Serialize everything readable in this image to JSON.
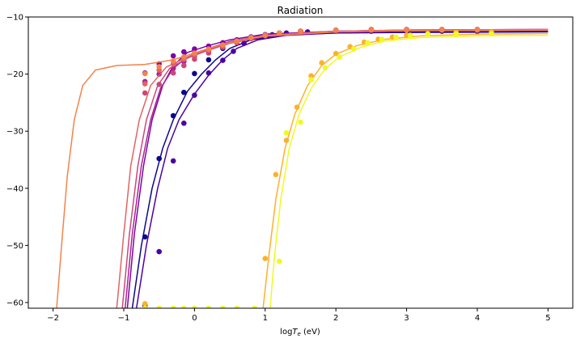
{
  "chart_data": {
    "type": "line",
    "title": "Radiation",
    "xlabel_main": "log",
    "xlabel_sub": "e",
    "xlabel_var": "T",
    "xlabel_unit": " (eV)",
    "xlim": [
      -2.35,
      5.35
    ],
    "ylim": [
      -61,
      -10
    ],
    "xticks": [
      -2,
      -1,
      0,
      1,
      2,
      3,
      4,
      5
    ],
    "yticks": [
      -60,
      -50,
      -40,
      -30,
      -20,
      -10
    ],
    "grid": false,
    "legend": "none",
    "series": [
      {
        "color": "#0d0887",
        "curve": [
          [
            -0.88,
            -61
          ],
          [
            -0.75,
            -50
          ],
          [
            -0.6,
            -40
          ],
          [
            -0.45,
            -33
          ],
          [
            -0.3,
            -28
          ],
          [
            -0.1,
            -23
          ],
          [
            0.1,
            -20
          ],
          [
            0.3,
            -17.5
          ],
          [
            0.5,
            -15.5
          ],
          [
            0.8,
            -14
          ],
          [
            1.2,
            -13.2
          ],
          [
            2,
            -12.8
          ],
          [
            3,
            -12.7
          ],
          [
            5,
            -12.6
          ]
        ],
        "points": [
          [
            -0.7,
            -61
          ],
          [
            -0.7,
            -48.5
          ],
          [
            -0.5,
            -34.8
          ],
          [
            -0.3,
            -27.3
          ],
          [
            -0.15,
            -23.2
          ],
          [
            0.0,
            -19.9
          ],
          [
            0.2,
            -17.5
          ],
          [
            0.4,
            -15.5
          ],
          [
            0.6,
            -14.3
          ],
          [
            0.8,
            -13.5
          ],
          [
            1.0,
            -13.1
          ],
          [
            1.2,
            -12.9
          ],
          [
            1.5,
            -12.6
          ],
          [
            2,
            -12.5
          ],
          [
            2.5,
            -12.5
          ],
          [
            3,
            -12.5
          ],
          [
            3.5,
            -12.5
          ],
          [
            4,
            -12.5
          ]
        ]
      },
      {
        "color": "#4c02a1",
        "curve": [
          [
            -0.82,
            -61
          ],
          [
            -0.68,
            -50
          ],
          [
            -0.52,
            -40
          ],
          [
            -0.38,
            -33
          ],
          [
            -0.22,
            -28
          ],
          [
            0,
            -23.5
          ],
          [
            0.2,
            -20.2
          ],
          [
            0.4,
            -17.5
          ],
          [
            0.6,
            -15.5
          ],
          [
            0.9,
            -14
          ],
          [
            1.3,
            -13.2
          ],
          [
            2,
            -12.8
          ],
          [
            3,
            -12.6
          ],
          [
            5,
            -12.5
          ]
        ],
        "points": [
          [
            -0.7,
            -60.5
          ],
          [
            -0.5,
            -51.1
          ],
          [
            -0.3,
            -35.2
          ],
          [
            -0.15,
            -28.6
          ],
          [
            0.0,
            -23.7
          ],
          [
            0.2,
            -19.8
          ],
          [
            0.4,
            -17.6
          ],
          [
            0.55,
            -16.0
          ],
          [
            0.7,
            -14.6
          ],
          [
            0.9,
            -13.6
          ],
          [
            1.1,
            -13.1
          ],
          [
            1.3,
            -12.8
          ],
          [
            1.6,
            -12.6
          ],
          [
            2,
            -12.4
          ],
          [
            2.5,
            -12.4
          ],
          [
            3,
            -12.4
          ],
          [
            3.5,
            -12.4
          ],
          [
            4,
            -12.4
          ]
        ]
      },
      {
        "color": "#7e03a8",
        "curve": [
          [
            -0.95,
            -61
          ],
          [
            -0.85,
            -48
          ],
          [
            -0.72,
            -36
          ],
          [
            -0.6,
            -28
          ],
          [
            -0.45,
            -22
          ],
          [
            -0.3,
            -18.5
          ],
          [
            -0.1,
            -16.2
          ],
          [
            0.2,
            -15
          ],
          [
            0.5,
            -14
          ],
          [
            1,
            -13
          ],
          [
            2,
            -12.5
          ],
          [
            3,
            -12.3
          ],
          [
            5,
            -12.2
          ]
        ],
        "points": [
          [
            -0.7,
            -19.8
          ],
          [
            -0.5,
            -18.2
          ],
          [
            -0.3,
            -16.8
          ],
          [
            -0.15,
            -16.1
          ],
          [
            0.0,
            -15.6
          ],
          [
            0.2,
            -15.1
          ],
          [
            0.4,
            -14.5
          ],
          [
            0.6,
            -14.0
          ],
          [
            0.8,
            -13.5
          ],
          [
            1.0,
            -13.1
          ],
          [
            1.2,
            -12.8
          ],
          [
            1.5,
            -12.5
          ],
          [
            2,
            -12.3
          ],
          [
            2.5,
            -12.2
          ],
          [
            3,
            -12.2
          ],
          [
            3.5,
            -12.2
          ],
          [
            4,
            -12.2
          ]
        ]
      },
      {
        "color": "#a92395",
        "curve": [
          [
            -0.98,
            -61
          ],
          [
            -0.88,
            -48
          ],
          [
            -0.75,
            -36
          ],
          [
            -0.62,
            -28
          ],
          [
            -0.48,
            -22.5
          ],
          [
            -0.3,
            -19
          ],
          [
            -0.1,
            -17
          ],
          [
            0.2,
            -15.5
          ],
          [
            0.5,
            -14.3
          ],
          [
            1,
            -13.2
          ],
          [
            2,
            -12.5
          ],
          [
            3,
            -12.3
          ],
          [
            5,
            -12.2
          ]
        ],
        "points": [
          [
            -0.7,
            -21.3
          ],
          [
            -0.5,
            -20.0
          ],
          [
            -0.3,
            -19.0
          ],
          [
            -0.15,
            -17.8
          ],
          [
            0.0,
            -16.8
          ],
          [
            0.2,
            -15.9
          ],
          [
            0.4,
            -15.0
          ],
          [
            0.6,
            -14.3
          ],
          [
            0.8,
            -13.7
          ],
          [
            1.0,
            -13.2
          ],
          [
            1.2,
            -12.8
          ],
          [
            1.5,
            -12.5
          ],
          [
            2,
            -12.3
          ],
          [
            2.5,
            -12.2
          ],
          [
            3,
            -12.2
          ],
          [
            3.5,
            -12.2
          ],
          [
            4,
            -12.2
          ]
        ]
      },
      {
        "color": "#cc4778",
        "curve": [
          [
            -1.02,
            -61
          ],
          [
            -0.92,
            -48
          ],
          [
            -0.8,
            -36
          ],
          [
            -0.68,
            -28
          ],
          [
            -0.52,
            -22
          ],
          [
            -0.35,
            -19
          ],
          [
            -0.1,
            -17.2
          ],
          [
            0.2,
            -15.8
          ],
          [
            0.5,
            -14.6
          ],
          [
            1,
            -13.4
          ],
          [
            2,
            -12.6
          ],
          [
            3,
            -12.4
          ],
          [
            5,
            -12.3
          ]
        ],
        "points": [
          [
            -0.7,
            -23.3
          ],
          [
            -0.5,
            -21.8
          ],
          [
            -0.3,
            -19.8
          ],
          [
            -0.15,
            -18.5
          ],
          [
            0.0,
            -17.4
          ],
          [
            0.2,
            -16.3
          ],
          [
            0.4,
            -15.3
          ],
          [
            0.6,
            -14.5
          ],
          [
            0.8,
            -13.8
          ],
          [
            1.0,
            -13.3
          ],
          [
            1.2,
            -12.9
          ],
          [
            1.5,
            -12.6
          ],
          [
            2,
            -12.4
          ],
          [
            2.5,
            -12.3
          ],
          [
            3,
            -12.3
          ],
          [
            3.5,
            -12.3
          ],
          [
            4,
            -12.3
          ]
        ]
      },
      {
        "color": "#e16462",
        "curve": [
          [
            -1.1,
            -61
          ],
          [
            -1.0,
            -48
          ],
          [
            -0.9,
            -36
          ],
          [
            -0.78,
            -28
          ],
          [
            -0.62,
            -22
          ],
          [
            -0.4,
            -18.8
          ],
          [
            -0.1,
            -17
          ],
          [
            0.2,
            -15.6
          ],
          [
            0.5,
            -14.4
          ],
          [
            1,
            -13.2
          ],
          [
            2,
            -12.5
          ],
          [
            3,
            -12.3
          ],
          [
            5,
            -12.2
          ]
        ],
        "points": [
          [
            -0.7,
            -21.7
          ],
          [
            -0.5,
            -19.3
          ],
          [
            -0.3,
            -18.2
          ],
          [
            -0.15,
            -17.4
          ],
          [
            0.0,
            -16.6
          ],
          [
            0.2,
            -15.8
          ],
          [
            0.4,
            -15.0
          ],
          [
            0.6,
            -14.3
          ],
          [
            0.8,
            -13.6
          ],
          [
            1.0,
            -13.2
          ],
          [
            1.2,
            -12.8
          ],
          [
            1.5,
            -12.5
          ],
          [
            2,
            -12.3
          ],
          [
            2.5,
            -12.2
          ],
          [
            3,
            -12.2
          ],
          [
            3.5,
            -12.2
          ],
          [
            4,
            -12.2
          ]
        ]
      },
      {
        "color": "#f2844b",
        "curve": [
          [
            -1.95,
            -61
          ],
          [
            -1.88,
            -50
          ],
          [
            -1.8,
            -38
          ],
          [
            -1.7,
            -28
          ],
          [
            -1.58,
            -22
          ],
          [
            -1.4,
            -19.3
          ],
          [
            -1.1,
            -18.5
          ],
          [
            -0.7,
            -18.3
          ],
          [
            -0.3,
            -17.5
          ],
          [
            0.2,
            -15.5
          ],
          [
            0.6,
            -14.2
          ],
          [
            1,
            -13.3
          ],
          [
            2,
            -12.6
          ],
          [
            3,
            -12.4
          ],
          [
            5,
            -12.3
          ]
        ],
        "points": [
          [
            -0.7,
            -19.9
          ],
          [
            -0.5,
            -18.7
          ],
          [
            -0.3,
            -17.7
          ],
          [
            -0.15,
            -17.0
          ],
          [
            0.0,
            -16.3
          ],
          [
            0.2,
            -15.6
          ],
          [
            0.4,
            -14.9
          ],
          [
            0.6,
            -14.2
          ],
          [
            0.8,
            -13.6
          ],
          [
            1.0,
            -13.2
          ],
          [
            1.2,
            -12.8
          ],
          [
            1.5,
            -12.5
          ],
          [
            2,
            -12.3
          ],
          [
            2.5,
            -12.3
          ],
          [
            3,
            -12.3
          ],
          [
            3.5,
            -12.3
          ],
          [
            4,
            -12.3
          ]
        ]
      },
      {
        "color": "#fcb12e",
        "curve": [
          [
            0.97,
            -61
          ],
          [
            1.05,
            -52
          ],
          [
            1.15,
            -42
          ],
          [
            1.28,
            -33
          ],
          [
            1.42,
            -27
          ],
          [
            1.6,
            -22
          ],
          [
            1.8,
            -18.5
          ],
          [
            2.0,
            -16.5
          ],
          [
            2.3,
            -15
          ],
          [
            2.7,
            -13.9
          ],
          [
            3.2,
            -13.3
          ],
          [
            4,
            -13.0
          ],
          [
            5,
            -12.9
          ]
        ],
        "points": [
          [
            -0.7,
            -60.2
          ],
          [
            1.0,
            -52.3
          ],
          [
            1.15,
            -37.6
          ],
          [
            1.3,
            -31.6
          ],
          [
            1.45,
            -25.8
          ],
          [
            1.65,
            -20.3
          ],
          [
            1.8,
            -18.0
          ],
          [
            2.0,
            -16.4
          ],
          [
            2.2,
            -15.2
          ],
          [
            2.4,
            -14.4
          ],
          [
            2.6,
            -13.9
          ],
          [
            2.8,
            -13.5
          ],
          [
            3.0,
            -13.2
          ],
          [
            3.3,
            -12.9
          ],
          [
            3.7,
            -12.7
          ],
          [
            4.2,
            -12.6
          ]
        ]
      },
      {
        "color": "#f0f921",
        "curve": [
          [
            1.07,
            -61
          ],
          [
            1.13,
            -52
          ],
          [
            1.22,
            -42
          ],
          [
            1.34,
            -33
          ],
          [
            1.48,
            -27
          ],
          [
            1.65,
            -22.5
          ],
          [
            1.85,
            -19
          ],
          [
            2.05,
            -17
          ],
          [
            2.35,
            -15.3
          ],
          [
            2.7,
            -14.2
          ],
          [
            3.2,
            -13.6
          ],
          [
            4,
            -13.3
          ],
          [
            5,
            -13.2
          ]
        ],
        "points": [
          [
            -0.7,
            -61
          ],
          [
            -0.5,
            -61
          ],
          [
            -0.3,
            -61
          ],
          [
            -0.15,
            -61
          ],
          [
            0.0,
            -61
          ],
          [
            0.2,
            -61
          ],
          [
            0.4,
            -61
          ],
          [
            0.6,
            -61
          ],
          [
            0.85,
            -61
          ],
          [
            1.2,
            -52.8
          ],
          [
            1.3,
            -30.3
          ],
          [
            1.5,
            -28.4
          ],
          [
            1.65,
            -21.0
          ],
          [
            1.85,
            -18.9
          ],
          [
            2.05,
            -17.0
          ],
          [
            2.25,
            -15.6
          ],
          [
            2.45,
            -14.5
          ],
          [
            2.65,
            -13.9
          ],
          [
            2.85,
            -13.5
          ],
          [
            3.05,
            -13.2
          ],
          [
            3.3,
            -13.0
          ],
          [
            3.7,
            -12.9
          ],
          [
            4.2,
            -12.9
          ]
        ]
      }
    ]
  }
}
